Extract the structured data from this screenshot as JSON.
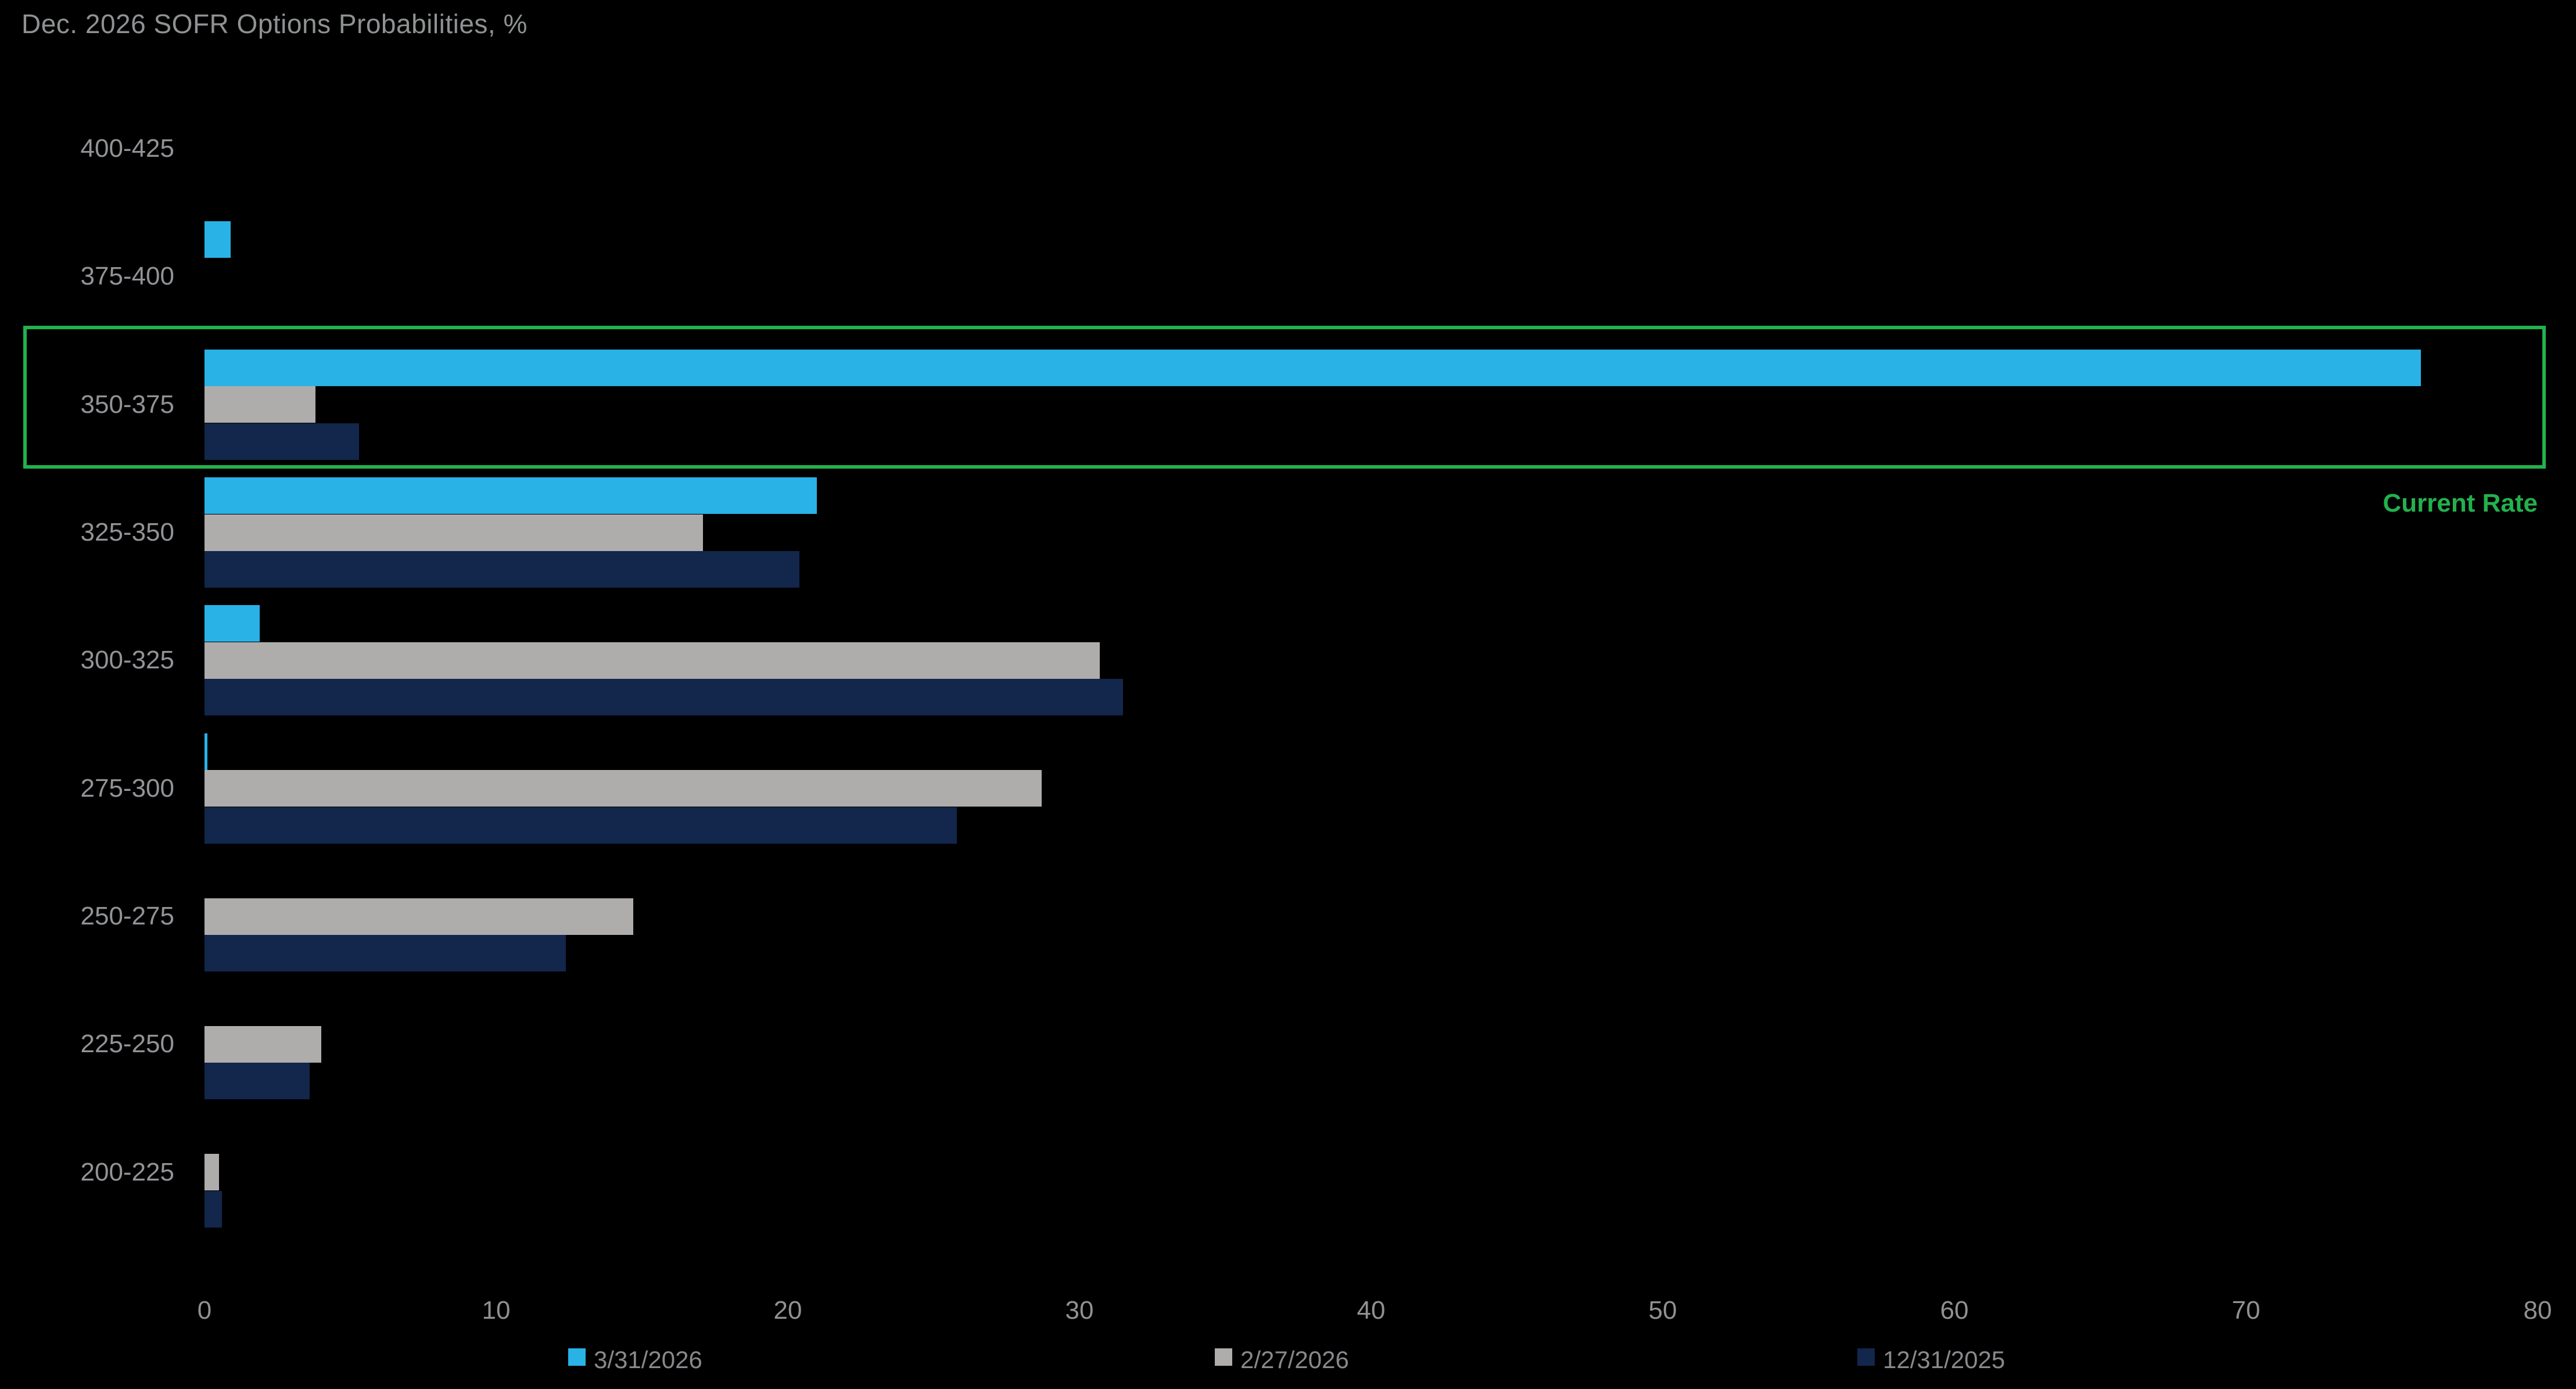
{
  "chart_data": {
    "type": "bar",
    "orientation": "horizontal",
    "title": "Dec. 2026 SOFR Options Probabilities, %",
    "categories": [
      "400-425",
      "375-400",
      "350-375",
      "325-350",
      "300-325",
      "275-300",
      "250-275",
      "225-250",
      "200-225"
    ],
    "series": [
      {
        "name": "3/31/2026",
        "color": "#29b2e6",
        "values": [
          0,
          0.9,
          76,
          21,
          1.9,
          0.1,
          0,
          0,
          0
        ]
      },
      {
        "name": "2/27/2026",
        "color": "#afadac",
        "values": [
          0,
          0,
          3.8,
          17.1,
          30.7,
          28.7,
          14.7,
          4.0,
          0.5
        ]
      },
      {
        "name": "12/31/2025",
        "color": "#13264b",
        "values": [
          0,
          0,
          5.3,
          20.4,
          31.5,
          25.8,
          12.4,
          3.6,
          0.6
        ]
      }
    ],
    "xlabel": "",
    "ylabel": "",
    "xlim": [
      0,
      80
    ],
    "x_ticks": [
      0,
      10,
      20,
      30,
      40,
      50,
      60,
      70,
      80
    ],
    "grid": false,
    "legend_position": "bottom",
    "annotation": {
      "label": "Current Rate",
      "highlighted_category": "350-375",
      "color": "#23b14d"
    },
    "background_color": "#000000",
    "text_color": "#8f9193"
  }
}
